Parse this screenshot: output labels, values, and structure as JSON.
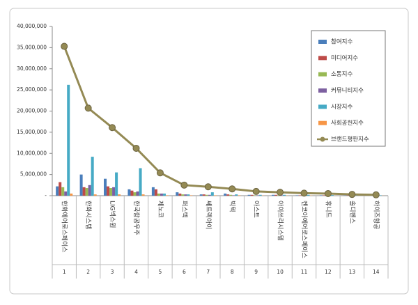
{
  "chart_data": {
    "type": "bar",
    "categories": [
      "한화에어로스페이스",
      "한화시스템",
      "LIG넥스원",
      "한국항공우주",
      "제노코",
      "퍼스텍",
      "쎄트렉아이",
      "빅텍",
      "아스트",
      "아이쓰리시스템",
      "켄코아에어로스페이스",
      "휴니드",
      "솔디펜스",
      "하이즈항공"
    ],
    "category_numbers": [
      1,
      2,
      3,
      4,
      5,
      6,
      7,
      8,
      9,
      10,
      11,
      12,
      13,
      14
    ],
    "series": [
      {
        "name": "참여지수",
        "color": "#4a7ebb",
        "values": [
          2200000,
          5000000,
          4000000,
          1500000,
          2000000,
          800000,
          300000,
          500000,
          200000,
          200000,
          100000,
          100000,
          50000,
          50000
        ]
      },
      {
        "name": "미디어지수",
        "color": "#be4b48",
        "values": [
          3200000,
          2000000,
          2200000,
          1200000,
          1500000,
          500000,
          300000,
          300000,
          200000,
          200000,
          100000,
          100000,
          50000,
          50000
        ]
      },
      {
        "name": "소통지수",
        "color": "#98b954",
        "values": [
          2000000,
          1800000,
          1800000,
          800000,
          500000,
          300000,
          200000,
          200000,
          100000,
          100000,
          100000,
          50000,
          50000,
          50000
        ]
      },
      {
        "name": "커뮤니티지수",
        "color": "#7d60a0",
        "values": [
          1000000,
          2500000,
          2000000,
          1000000,
          500000,
          300000,
          200000,
          100000,
          100000,
          100000,
          100000,
          50000,
          50000,
          50000
        ]
      },
      {
        "name": "시장지수",
        "color": "#46aac5",
        "values": [
          26200000,
          9200000,
          5500000,
          6500000,
          500000,
          300000,
          800000,
          300000,
          200000,
          200000,
          200000,
          150000,
          100000,
          100000
        ]
      },
      {
        "name": "사회공헌지수",
        "color": "#f79646",
        "values": [
          500000,
          300000,
          300000,
          300000,
          100000,
          100000,
          100000,
          100000,
          50000,
          50000,
          50000,
          20000,
          20000,
          20000
        ]
      },
      {
        "name": "브랜드평판지수",
        "color": "#948a54",
        "type": "line",
        "values": [
          35300000,
          20700000,
          16100000,
          11200000,
          5400000,
          2500000,
          2100000,
          1600000,
          1000000,
          800000,
          600000,
          500000,
          300000,
          200000
        ]
      }
    ],
    "ylim": [
      0,
      40000000
    ],
    "yticks": [
      {
        "value": 0,
        "label": "-"
      },
      {
        "value": 5000000,
        "label": "5,000,000"
      },
      {
        "value": 10000000,
        "label": "10,000,000"
      },
      {
        "value": 15000000,
        "label": "15,000,000"
      },
      {
        "value": 20000000,
        "label": "20,000,000"
      },
      {
        "value": 25000000,
        "label": "25,000,000"
      },
      {
        "value": 30000000,
        "label": "30,000,000"
      },
      {
        "value": 35000000,
        "label": "35,000,000"
      },
      {
        "value": 40000000,
        "label": "40,000,000"
      }
    ],
    "grid": false,
    "legend": "upper right"
  }
}
